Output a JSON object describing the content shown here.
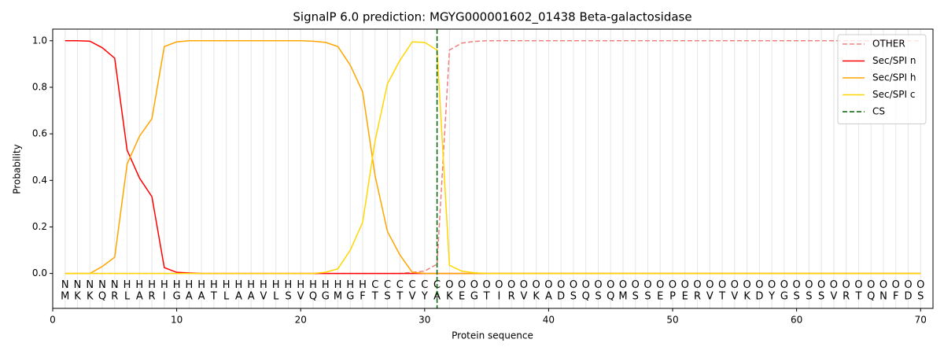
{
  "chart_data": {
    "type": "line",
    "title": "SignalP 6.0 prediction: MGYG000001602_01438 Beta-galactosidase",
    "xlabel": "Protein sequence",
    "ylabel": "Probability",
    "x": [
      1,
      2,
      3,
      4,
      5,
      6,
      7,
      8,
      9,
      10,
      11,
      12,
      13,
      14,
      15,
      16,
      17,
      18,
      19,
      20,
      21,
      22,
      23,
      24,
      25,
      26,
      27,
      28,
      29,
      30,
      31,
      32,
      33,
      34,
      35,
      36,
      37,
      38,
      39,
      40,
      41,
      42,
      43,
      44,
      45,
      46,
      47,
      48,
      49,
      50,
      51,
      52,
      53,
      54,
      55,
      56,
      57,
      58,
      59,
      60,
      61,
      62,
      63,
      64,
      65,
      66,
      67,
      68,
      69,
      70
    ],
    "xlim": [
      0,
      71
    ],
    "xticks": [
      0,
      10,
      20,
      30,
      40,
      50,
      60,
      70
    ],
    "ylim": [
      -0.15,
      1.05
    ],
    "yticks": [
      {
        "value": 0,
        "label": "0.0"
      },
      0.2,
      0.4,
      0.6,
      0.8,
      {
        "value": 1,
        "label": "1.0"
      }
    ],
    "grid": true,
    "legend": "upper right",
    "series": [
      {
        "name": "OTHER",
        "color": "#f08080",
        "dashed": true,
        "values": [
          0,
          0,
          0,
          0,
          0,
          0,
          0,
          0,
          0,
          0,
          0,
          0,
          0,
          0,
          0,
          0,
          0,
          0,
          0,
          0,
          0,
          0,
          0,
          0,
          0,
          0,
          0,
          0,
          0.005,
          0.01,
          0.04,
          0.96,
          0.99,
          0.997,
          1,
          1,
          1,
          1,
          1,
          1,
          1,
          1,
          1,
          1,
          1,
          1,
          1,
          1,
          1,
          1,
          1,
          1,
          1,
          1,
          1,
          1,
          1,
          1,
          1,
          1,
          1,
          1,
          1,
          1,
          1,
          1,
          1,
          1,
          1,
          1
        ]
      },
      {
        "name": "Sec/SPI n",
        "color": "#ff0000",
        "dashed": false,
        "values": [
          1,
          1,
          0.998,
          0.97,
          0.925,
          0.53,
          0.41,
          0.33,
          0.025,
          0.005,
          0.002,
          0,
          0,
          0,
          0,
          0,
          0,
          0,
          0,
          0,
          0,
          0,
          0,
          0,
          0,
          0,
          0,
          0,
          0,
          0,
          0,
          0,
          0,
          0,
          0,
          0,
          0,
          0,
          0,
          0,
          0,
          0,
          0,
          0,
          0,
          0,
          0,
          0,
          0,
          0,
          0,
          0,
          0,
          0,
          0,
          0,
          0,
          0,
          0,
          0,
          0,
          0,
          0,
          0,
          0,
          0,
          0,
          0,
          0,
          0
        ]
      },
      {
        "name": "Sec/SPI h",
        "color": "#ffa500",
        "dashed": false,
        "values": [
          0,
          0,
          0,
          0.03,
          0.07,
          0.47,
          0.59,
          0.665,
          0.975,
          0.995,
          1,
          1,
          1,
          1,
          1,
          1,
          1,
          1,
          1,
          1,
          0.998,
          0.993,
          0.975,
          0.895,
          0.78,
          0.42,
          0.18,
          0.08,
          0.005,
          0,
          0,
          0,
          0,
          0,
          0,
          0,
          0,
          0,
          0,
          0,
          0,
          0,
          0,
          0,
          0,
          0,
          0,
          0,
          0,
          0,
          0,
          0,
          0,
          0,
          0,
          0,
          0,
          0,
          0,
          0,
          0,
          0,
          0,
          0,
          0,
          0,
          0,
          0,
          0,
          0
        ]
      },
      {
        "name": "Sec/SPI c",
        "color": "#ffd700",
        "dashed": false,
        "values": [
          0,
          0,
          0,
          0,
          0,
          0,
          0,
          0,
          0,
          0,
          0,
          0,
          0,
          0,
          0,
          0,
          0,
          0,
          0,
          0,
          0,
          0.005,
          0.02,
          0.1,
          0.22,
          0.57,
          0.815,
          0.915,
          0.995,
          0.993,
          0.96,
          0.035,
          0.01,
          0.003,
          0,
          0,
          0,
          0,
          0,
          0,
          0,
          0,
          0,
          0,
          0,
          0,
          0,
          0,
          0,
          0,
          0,
          0,
          0,
          0,
          0,
          0,
          0,
          0,
          0,
          0,
          0,
          0,
          0,
          0,
          0,
          0,
          0,
          0,
          0,
          0
        ]
      }
    ],
    "cs": {
      "name": "CS",
      "x": 31,
      "color": "#006400"
    },
    "region_labels": [
      "N",
      "N",
      "N",
      "N",
      "N",
      "H",
      "H",
      "H",
      "H",
      "H",
      "H",
      "H",
      "H",
      "H",
      "H",
      "H",
      "H",
      "H",
      "H",
      "H",
      "H",
      "H",
      "H",
      "H",
      "H",
      "C",
      "C",
      "C",
      "C",
      "C",
      "C",
      "O",
      "O",
      "O",
      "O",
      "O",
      "O",
      "O",
      "O",
      "O",
      "O",
      "O",
      "O",
      "O",
      "O",
      "O",
      "O",
      "O",
      "O",
      "O",
      "O",
      "O",
      "O",
      "O",
      "O",
      "O",
      "O",
      "O",
      "O",
      "O",
      "O",
      "O",
      "O",
      "O",
      "O",
      "O",
      "O",
      "O",
      "O",
      "O"
    ],
    "region_colors": {
      "N": "#ff0000",
      "H": "#ffa500",
      "C": "#ffd700",
      "O": "#808080"
    },
    "sequence": [
      "M",
      "K",
      "K",
      "Q",
      "R",
      "L",
      "A",
      "R",
      "I",
      "G",
      "A",
      "A",
      "T",
      "L",
      "A",
      "A",
      "V",
      "L",
      "S",
      "V",
      "Q",
      "G",
      "M",
      "G",
      "F",
      "T",
      "S",
      "T",
      "V",
      "Y",
      "A",
      "K",
      "E",
      "G",
      "T",
      "I",
      "R",
      "V",
      "K",
      "A",
      "D",
      "S",
      "Q",
      "S",
      "Q",
      "M",
      "S",
      "S",
      "E",
      "P",
      "E",
      "R",
      "V",
      "T",
      "V",
      "K",
      "D",
      "Y",
      "G",
      "S",
      "S",
      "S",
      "V",
      "R",
      "T",
      "Q",
      "N",
      "F",
      "D",
      "S"
    ]
  }
}
